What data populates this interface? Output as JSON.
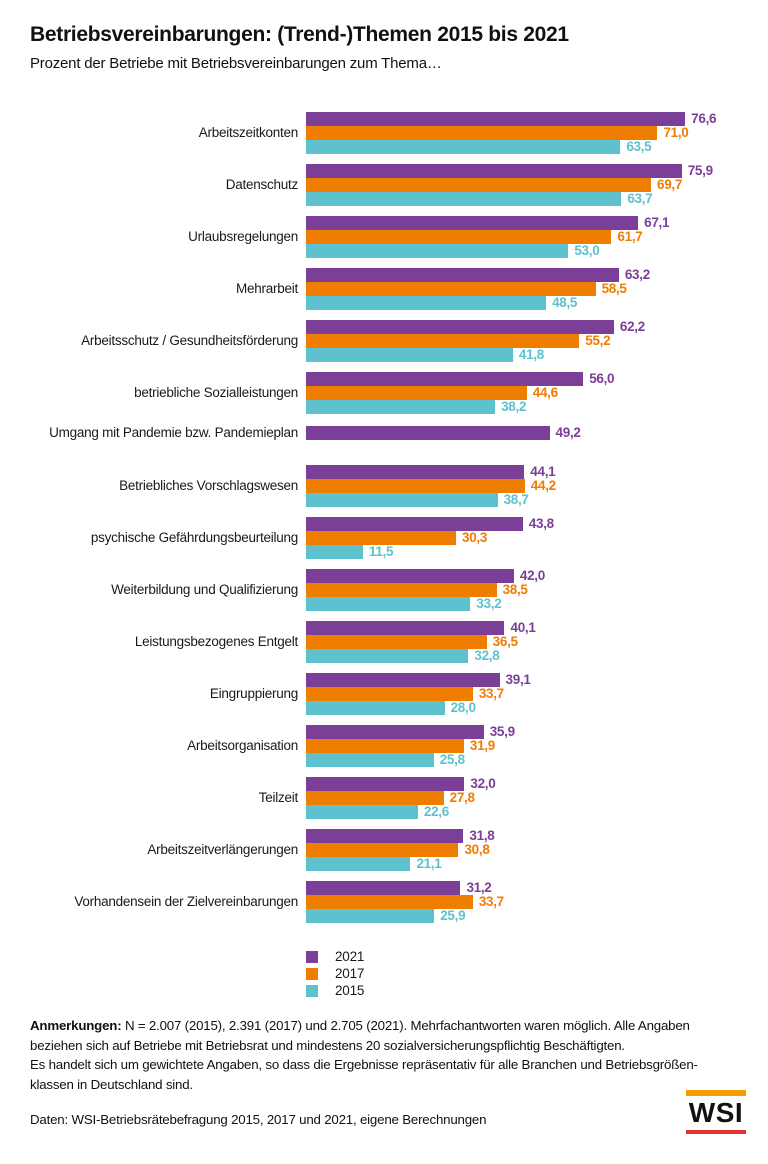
{
  "header": {
    "title": "Betriebsvereinbarungen: (Trend-)Themen 2015 bis 2021",
    "subtitle": "Prozent der Betriebe mit Betriebsvereinbarungen zum Thema…"
  },
  "chart_data": {
    "type": "bar",
    "orientation": "horizontal",
    "unit": "percent",
    "title": "Betriebsvereinbarungen: (Trend-)Themen 2015 bis 2021",
    "subtitle": "Prozent der Betriebe mit Betriebsvereinbarungen zum Thema…",
    "xlim": [
      0,
      80
    ],
    "grid": false,
    "legend_position": "bottom-left",
    "value_label_format": "decimal-comma-1",
    "categories": [
      "Arbeitszeitkonten",
      "Datenschutz",
      "Urlaubsregelungen",
      "Mehrarbeit",
      "Arbeitsschutz / Gesundheitsförderung",
      "betriebliche Sozialleistungen",
      "Umgang mit Pandemie bzw. Pandemieplan",
      "Betriebliches Vorschlagswesen",
      "psychische Gefährdungsbeurteilung",
      "Weiterbildung und Qualifizierung",
      "Leistungsbezogenes Entgelt",
      "Eingruppierung",
      "Arbeitsorganisation",
      "Teilzeit",
      "Arbeitszeitverlängerungen",
      "Vorhandensein der Zielvereinbarungen"
    ],
    "series": [
      {
        "name": "2021",
        "color": "#7B3F98",
        "values": [
          76.6,
          75.9,
          67.1,
          63.2,
          62.2,
          56.0,
          49.2,
          44.1,
          43.8,
          42.0,
          40.1,
          39.1,
          35.9,
          32.0,
          31.8,
          31.2
        ]
      },
      {
        "name": "2017",
        "color": "#EE7D00",
        "values": [
          71.0,
          69.7,
          61.7,
          58.5,
          55.2,
          44.6,
          null,
          44.2,
          30.3,
          38.5,
          36.5,
          33.7,
          31.9,
          27.8,
          30.8,
          33.7
        ]
      },
      {
        "name": "2015",
        "color": "#5EC2CE",
        "values": [
          63.5,
          63.7,
          53.0,
          48.5,
          41.8,
          38.2,
          null,
          38.7,
          11.5,
          33.2,
          32.8,
          28.0,
          25.8,
          22.6,
          21.1,
          25.9
        ]
      }
    ]
  },
  "notes": {
    "label": "Anmerkungen:",
    "text": "N = 2.007 (2015), 2.391 (2017) und 2.705 (2021). Mehrfachantworten waren möglich. Alle Angaben\nbeziehen sich auf Betriebe mit Betriebsrat und mindestens 20 sozialversicherungspflichtig Beschäftigten.\nEs handelt sich um gewichtete Angaben, so dass die Ergebnisse repräsentativ für alle Branchen und Betriebsgrößen-\nklassen in Deutschland sind."
  },
  "source": {
    "text": "Daten: WSI-Betriebsrätebefragung 2015, 2017 und 2021, eigene Berechnungen"
  },
  "logo": {
    "text": "WSI",
    "top_bar_color": "#F59E00",
    "bottom_bar_color": "#E5332D"
  }
}
